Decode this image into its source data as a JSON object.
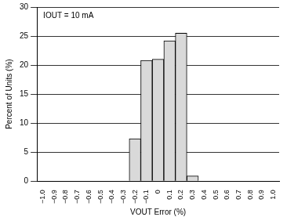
{
  "chart_data": {
    "type": "bar",
    "annotation": "IOUT = 10 mA",
    "x_label": "VOUT Error (%)",
    "y_label": "Percent of Units (%)",
    "categories": [
      "−1.0",
      "−0.9",
      "−0.8",
      "−0.7",
      "−0.6",
      "−0.5",
      "−0.4",
      "−0.3",
      "−0.2",
      "−0.1",
      "0",
      "0.1",
      "0.2",
      "0.3",
      "0.4",
      "0.5",
      "0.6",
      "0.7",
      "0.8",
      "0.9",
      "1.0"
    ],
    "values": [
      0,
      0,
      0,
      0,
      0,
      0,
      0,
      0,
      7.3,
      20.8,
      21,
      24.2,
      25.5,
      0.9,
      0,
      0,
      0,
      0,
      0,
      0,
      0
    ],
    "color": "#d9d9d9",
    "ylim": [
      0,
      30
    ],
    "yticks": [
      0,
      5,
      10,
      15,
      20,
      25,
      30
    ],
    "grid": true
  }
}
